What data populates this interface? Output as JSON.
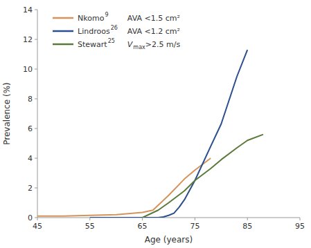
{
  "chart_data": {
    "type": "line",
    "xlabel": "Age (years)",
    "ylabel": "Prevalence (%)",
    "xlim": [
      45,
      95
    ],
    "ylim": [
      0,
      14
    ],
    "xticks": [
      45,
      55,
      65,
      75,
      85,
      95
    ],
    "yticks": [
      0,
      2,
      4,
      6,
      8,
      10,
      12,
      14
    ],
    "grid": false,
    "legend": "upper left",
    "series": [
      {
        "name": "Nkomo",
        "name_sup": "9",
        "criterion_parts": [
          "AVA <1.5 cm²"
        ],
        "color": "#D4935A",
        "x": [
          45,
          50,
          55,
          60,
          65,
          67,
          70,
          73,
          75,
          78
        ],
        "values": [
          0.1,
          0.1,
          0.15,
          0.2,
          0.35,
          0.5,
          1.5,
          2.6,
          3.2,
          4.0
        ]
      },
      {
        "name": "Lindroos",
        "name_sup": "26",
        "criterion_parts": [
          "AVA <1.2 cm²"
        ],
        "color": "#2B4E8C",
        "x": [
          55,
          60,
          65,
          68,
          69,
          70,
          71,
          72,
          73,
          75,
          78,
          80,
          83,
          85
        ],
        "values": [
          0.0,
          0.0,
          0.0,
          0.0,
          0.05,
          0.15,
          0.3,
          0.7,
          1.2,
          2.5,
          4.8,
          6.3,
          9.5,
          11.3
        ]
      },
      {
        "name": "Stewart",
        "name_sup": "25",
        "criterion_parts": [
          "V",
          "max",
          " >2.5 m/s"
        ],
        "color": "#5A7A3A",
        "x": [
          65,
          68,
          70,
          73,
          75,
          78,
          80,
          83,
          85,
          88
        ],
        "values": [
          0.0,
          0.5,
          1.0,
          1.8,
          2.5,
          3.3,
          3.9,
          4.7,
          5.2,
          5.6
        ]
      }
    ]
  }
}
